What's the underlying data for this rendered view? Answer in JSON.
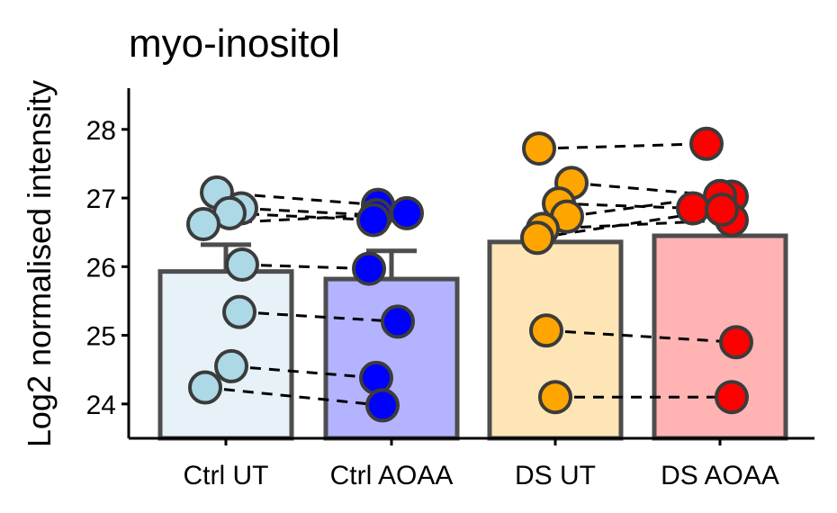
{
  "chart_data": {
    "type": "bar",
    "title": "myo-inositol",
    "xlabel": "",
    "ylabel": "Log2 normalised intensity",
    "ylim": [
      23.5,
      28.6
    ],
    "yticks": [
      24,
      25,
      26,
      27,
      28
    ],
    "grid": false,
    "legend": "none",
    "categories": [
      "Ctrl UT",
      "Ctrl AOAA",
      "DS UT",
      "DS AOAA"
    ],
    "bar_fill_colors": [
      "#e6f2f8",
      "#b3b3ff",
      "#fde5b6",
      "#ffb3b3"
    ],
    "point_colors": [
      "#add8e6",
      "#0000ff",
      "#ffa500",
      "#ff0000"
    ],
    "bars": [
      {
        "category": "Ctrl UT",
        "mean": 25.93,
        "error_upper": 26.32
      },
      {
        "category": "Ctrl AOAA",
        "mean": 25.82,
        "error_upper": 26.23
      },
      {
        "category": "DS UT",
        "mean": 26.36,
        "error_upper": 26.36
      },
      {
        "category": "DS AOAA",
        "mean": 26.45,
        "error_upper": 26.45
      }
    ],
    "points": [
      {
        "category": "Ctrl UT",
        "values": [
          27.08,
          26.85,
          26.78,
          26.62,
          26.03,
          25.34,
          24.55,
          24.24
        ]
      },
      {
        "category": "Ctrl AOAA",
        "values": [
          26.9,
          26.75,
          26.78,
          26.68,
          25.97,
          25.2,
          24.38,
          23.98
        ]
      },
      {
        "category": "DS UT",
        "values": [
          27.72,
          27.22,
          26.92,
          26.73,
          26.55,
          26.42,
          25.07,
          24.1
        ]
      },
      {
        "category": "DS AOAA",
        "values": [
          27.79,
          27.02,
          27.03,
          26.85,
          26.68,
          26.83,
          24.9,
          24.1
        ]
      }
    ],
    "pairs": [
      [
        0,
        0
      ],
      [
        1,
        1
      ],
      [
        2,
        3
      ],
      [
        3,
        2
      ],
      [
        4,
        4
      ],
      [
        5,
        5
      ],
      [
        6,
        6
      ],
      [
        7,
        7
      ]
    ],
    "pairs_between": [
      [
        "Ctrl UT",
        "Ctrl AOAA"
      ],
      [
        "DS UT",
        "DS AOAA"
      ]
    ]
  }
}
